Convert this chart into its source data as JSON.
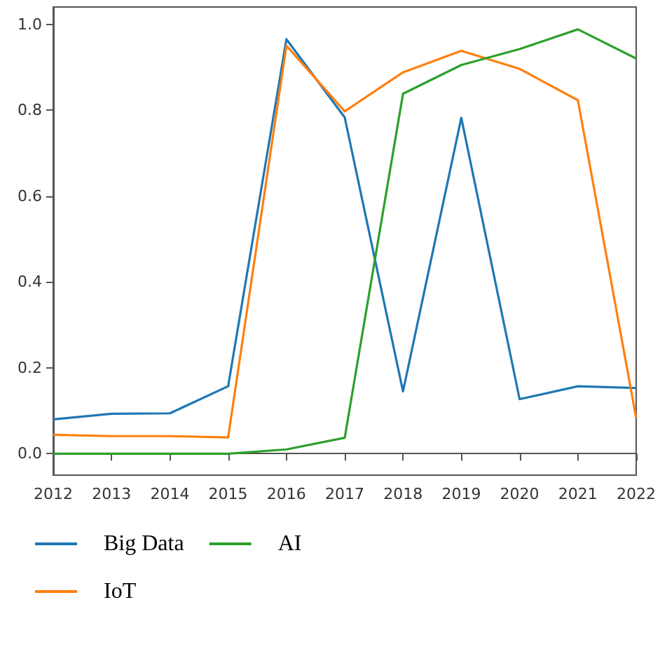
{
  "chart_data": {
    "type": "line",
    "categories": [
      "2012",
      "2013",
      "2014",
      "2015",
      "2016",
      "2017",
      "2018",
      "2019",
      "2020",
      "2021",
      "2022"
    ],
    "series": [
      {
        "name": "Big Data",
        "color": "#1f77b4",
        "values": [
          0.08,
          0.093,
          0.094,
          0.157,
          0.965,
          0.783,
          0.145,
          0.782,
          0.127,
          0.157,
          0.153
        ]
      },
      {
        "name": "IoT",
        "color": "#ff7f0e",
        "values": [
          0.044,
          0.041,
          0.041,
          0.038,
          0.95,
          0.797,
          0.888,
          0.938,
          0.896,
          0.823,
          0.083
        ]
      },
      {
        "name": "AI",
        "color": "#2ca02c",
        "values": [
          0,
          0,
          0,
          0,
          0.01,
          0.037,
          0.838,
          0.905,
          0.942,
          0.988,
          0.92
        ]
      }
    ],
    "ylim": [
      -0.05,
      1.04
    ],
    "yticks": [
      {
        "value": 0,
        "label": "0.0"
      },
      {
        "value": 0.2,
        "label": "0.2"
      },
      {
        "value": 0.4,
        "label": "0.4"
      },
      {
        "value": 0.6,
        "label": "0.6"
      },
      {
        "value": 0.8,
        "label": "0.8"
      },
      {
        "value": 1,
        "label": "1.0"
      }
    ],
    "legend": "bottom left",
    "marker": "none",
    "line_style": "solid"
  }
}
